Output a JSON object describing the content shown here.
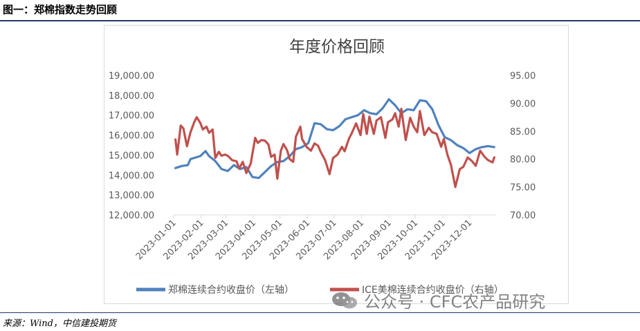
{
  "figure": {
    "caption": "图一：郑棉指数走势回顾",
    "source": "来源：Wind，中信建投期货",
    "watermark": "公众号 · CFC农产品研究",
    "watermark_icon": "wechat-icon"
  },
  "chart_data": {
    "type": "line",
    "title": "年度价格回顾",
    "left_axis": {
      "range": [
        12000,
        19000
      ],
      "ticks": [
        "12,000.00",
        "13,000.00",
        "14,000.00",
        "15,000.00",
        "16,000.00",
        "17,000.00",
        "18,000.00",
        "19,000.00"
      ]
    },
    "right_axis": {
      "range": [
        70,
        95
      ],
      "ticks": [
        "70.00",
        "75.00",
        "80.00",
        "85.00",
        "90.00",
        "95.00"
      ]
    },
    "x_axis": {
      "ticks": [
        "2023-01-01",
        "2023-02-01",
        "2023-03-01",
        "2023-04-01",
        "2023-05-01",
        "2023-06-01",
        "2023-07-01",
        "2023-08-01",
        "2023-09-01",
        "2023-10-01",
        "2023-11-01",
        "2023-12-01"
      ]
    },
    "grid": false,
    "legend_position": "bottom",
    "series": [
      {
        "name": "郑棉连续合约收盘价（左轴）",
        "axis": "left",
        "color": "#4f81bd",
        "points": [
          [
            "2023-01-03",
            14350
          ],
          [
            "2023-01-10",
            14450
          ],
          [
            "2023-01-17",
            14500
          ],
          [
            "2023-01-20",
            14800
          ],
          [
            "2023-01-31",
            14950
          ],
          [
            "2023-02-06",
            15200
          ],
          [
            "2023-02-10",
            14950
          ],
          [
            "2023-02-17",
            14700
          ],
          [
            "2023-02-24",
            14300
          ],
          [
            "2023-03-03",
            14200
          ],
          [
            "2023-03-10",
            14500
          ],
          [
            "2023-03-17",
            14300
          ],
          [
            "2023-03-24",
            14400
          ],
          [
            "2023-03-31",
            13900
          ],
          [
            "2023-04-07",
            13850
          ],
          [
            "2023-04-14",
            14150
          ],
          [
            "2023-04-21",
            14450
          ],
          [
            "2023-04-28",
            14650
          ],
          [
            "2023-05-05",
            14700
          ],
          [
            "2023-05-12",
            14950
          ],
          [
            "2023-05-19",
            15300
          ],
          [
            "2023-05-26",
            15400
          ],
          [
            "2023-06-02",
            15600
          ],
          [
            "2023-06-09",
            16600
          ],
          [
            "2023-06-16",
            16550
          ],
          [
            "2023-06-23",
            16300
          ],
          [
            "2023-06-30",
            16250
          ],
          [
            "2023-07-07",
            16450
          ],
          [
            "2023-07-14",
            16800
          ],
          [
            "2023-07-21",
            16900
          ],
          [
            "2023-07-28",
            17000
          ],
          [
            "2023-08-04",
            17250
          ],
          [
            "2023-08-11",
            17100
          ],
          [
            "2023-08-18",
            17050
          ],
          [
            "2023-08-25",
            17350
          ],
          [
            "2023-09-01",
            17800
          ],
          [
            "2023-09-08",
            17500
          ],
          [
            "2023-09-15",
            17100
          ],
          [
            "2023-09-22",
            17300
          ],
          [
            "2023-09-29",
            17250
          ],
          [
            "2023-10-06",
            17750
          ],
          [
            "2023-10-13",
            17700
          ],
          [
            "2023-10-20",
            17300
          ],
          [
            "2023-10-27",
            16500
          ],
          [
            "2023-11-03",
            15900
          ],
          [
            "2023-11-10",
            15750
          ],
          [
            "2023-11-17",
            15500
          ],
          [
            "2023-11-24",
            15350
          ],
          [
            "2023-12-01",
            15100
          ],
          [
            "2023-12-08",
            15300
          ],
          [
            "2023-12-15",
            15400
          ],
          [
            "2023-12-22",
            15450
          ],
          [
            "2023-12-29",
            15400
          ]
        ]
      },
      {
        "name": "ICE美棉连续合约收盘价（右轴）",
        "axis": "right",
        "color": "#c0504d",
        "points": [
          [
            "2023-01-03",
            83.5
          ],
          [
            "2023-01-05",
            80.8
          ],
          [
            "2023-01-09",
            86.0
          ],
          [
            "2023-01-12",
            85.5
          ],
          [
            "2023-01-16",
            82.3
          ],
          [
            "2023-01-20",
            84.8
          ],
          [
            "2023-01-24",
            86.5
          ],
          [
            "2023-01-27",
            87.5
          ],
          [
            "2023-01-31",
            86.5
          ],
          [
            "2023-02-03",
            85.3
          ],
          [
            "2023-02-07",
            85.8
          ],
          [
            "2023-02-10",
            84.7
          ],
          [
            "2023-02-14",
            85.3
          ],
          [
            "2023-02-17",
            80.2
          ],
          [
            "2023-02-21",
            81.3
          ],
          [
            "2023-02-24",
            80.6
          ],
          [
            "2023-02-28",
            80.8
          ],
          [
            "2023-03-03",
            80.6
          ],
          [
            "2023-03-08",
            79.8
          ],
          [
            "2023-03-13",
            79.6
          ],
          [
            "2023-03-16",
            78.3
          ],
          [
            "2023-03-20",
            79.5
          ],
          [
            "2023-03-24",
            77.5
          ],
          [
            "2023-03-29",
            79.2
          ],
          [
            "2023-04-03",
            83.8
          ],
          [
            "2023-04-06",
            82.9
          ],
          [
            "2023-04-10",
            83.4
          ],
          [
            "2023-04-14",
            83.3
          ],
          [
            "2023-04-18",
            82.6
          ],
          [
            "2023-04-21",
            80.4
          ],
          [
            "2023-04-25",
            80.8
          ],
          [
            "2023-04-28",
            76.5
          ],
          [
            "2023-05-02",
            81.5
          ],
          [
            "2023-05-05",
            82.7
          ],
          [
            "2023-05-09",
            81.6
          ],
          [
            "2023-05-12",
            80.0
          ],
          [
            "2023-05-16",
            79.5
          ],
          [
            "2023-05-19",
            84.0
          ],
          [
            "2023-05-24",
            85.8
          ],
          [
            "2023-05-26",
            83.6
          ],
          [
            "2023-05-31",
            82.2
          ],
          [
            "2023-06-05",
            81.5
          ],
          [
            "2023-06-09",
            82.8
          ],
          [
            "2023-06-13",
            82.4
          ],
          [
            "2023-06-16",
            81.3
          ],
          [
            "2023-06-21",
            79.8
          ],
          [
            "2023-06-26",
            77.3
          ],
          [
            "2023-06-30",
            80.2
          ],
          [
            "2023-07-05",
            80.8
          ],
          [
            "2023-07-10",
            82.2
          ],
          [
            "2023-07-13",
            81.4
          ],
          [
            "2023-07-18",
            83.7
          ],
          [
            "2023-07-21",
            84.6
          ],
          [
            "2023-07-26",
            86.4
          ],
          [
            "2023-07-31",
            84.3
          ],
          [
            "2023-08-03",
            88.1
          ],
          [
            "2023-08-07",
            84.5
          ],
          [
            "2023-08-10",
            87.6
          ],
          [
            "2023-08-15",
            84.5
          ],
          [
            "2023-08-18",
            86.9
          ],
          [
            "2023-08-23",
            87.5
          ],
          [
            "2023-08-28",
            83.8
          ],
          [
            "2023-08-31",
            86.6
          ],
          [
            "2023-09-05",
            87.1
          ],
          [
            "2023-09-08",
            88.2
          ],
          [
            "2023-09-12",
            85.8
          ],
          [
            "2023-09-15",
            89.0
          ],
          [
            "2023-09-20",
            83.4
          ],
          [
            "2023-09-25",
            87.4
          ],
          [
            "2023-09-29",
            85.8
          ],
          [
            "2023-10-03",
            84.8
          ],
          [
            "2023-10-06",
            88.6
          ],
          [
            "2023-10-11",
            84.3
          ],
          [
            "2023-10-16",
            85.6
          ],
          [
            "2023-10-20",
            84.8
          ],
          [
            "2023-10-25",
            84.5
          ],
          [
            "2023-10-30",
            82.2
          ],
          [
            "2023-11-02",
            83.6
          ],
          [
            "2023-11-06",
            80.8
          ],
          [
            "2023-11-10",
            79.0
          ],
          [
            "2023-11-15",
            75.0
          ],
          [
            "2023-11-20",
            78.2
          ],
          [
            "2023-11-24",
            78.6
          ],
          [
            "2023-11-29",
            80.3
          ],
          [
            "2023-12-04",
            79.6
          ],
          [
            "2023-12-08",
            78.8
          ],
          [
            "2023-12-13",
            81.5
          ],
          [
            "2023-12-18",
            80.4
          ],
          [
            "2023-12-22",
            79.8
          ],
          [
            "2023-12-27",
            79.4
          ],
          [
            "2023-12-29",
            80.3
          ]
        ]
      }
    ]
  }
}
